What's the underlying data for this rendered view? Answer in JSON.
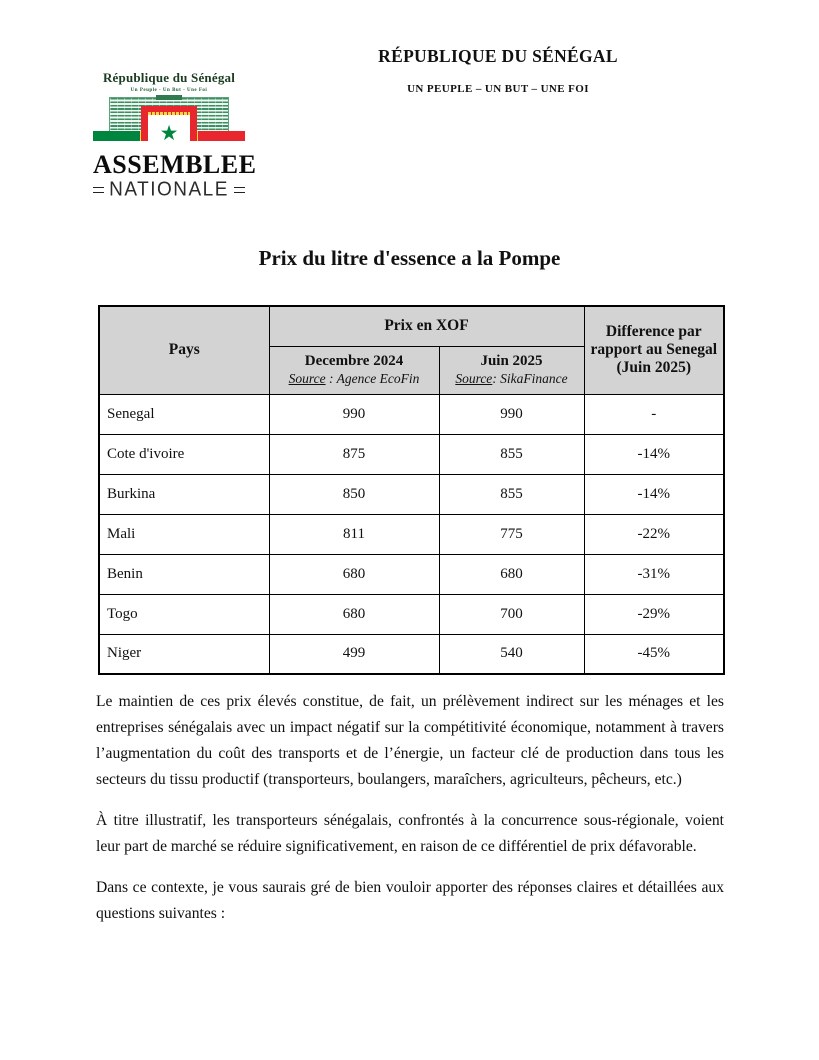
{
  "header": {
    "republic_title": "RÉPUBLIQUE DU SÉNÉGAL",
    "republic_motto": "UN PEUPLE – UN BUT – UNE FOI"
  },
  "logo": {
    "country_name": "République du Sénégal",
    "small_motto": "Un Peuple - Un But - Une Foi",
    "org_line1": "ASSEMBLEE",
    "org_line2": "NATIONALE",
    "star_glyph": "★",
    "colors": {
      "green": "#00853f",
      "yellow": "#f7d73c",
      "red": "#e8262d"
    }
  },
  "document": {
    "title": "Prix du litre d'essence a la Pompe"
  },
  "table": {
    "header": {
      "pays": "Pays",
      "group": "Prix en XOF",
      "dec_title": "Decembre 2024",
      "dec_source_label": "Source",
      "dec_source_rest": " : Agence EcoFin",
      "juin_title": "Juin 2025",
      "juin_source_label": "Source",
      "juin_source_rest": ": SikaFinance",
      "diff": "Difference par rapport au Senegal (Juin 2025)"
    },
    "header_bg": "#d3d3d3",
    "rows": [
      {
        "country": "Senegal",
        "dec": "990",
        "juin": "990",
        "diff": "-"
      },
      {
        "country": "Cote d'ivoire",
        "dec": "875",
        "juin": "855",
        "diff": "-14%"
      },
      {
        "country": "Burkina",
        "dec": "850",
        "juin": "855",
        "diff": "-14%"
      },
      {
        "country": "Mali",
        "dec": "811",
        "juin": "775",
        "diff": "-22%"
      },
      {
        "country": "Benin",
        "dec": "680",
        "juin": "680",
        "diff": "-31%"
      },
      {
        "country": "Togo",
        "dec": "680",
        "juin": "700",
        "diff": "-29%"
      },
      {
        "country": "Niger",
        "dec": "499",
        "juin": "540",
        "diff": "-45%"
      }
    ]
  },
  "paragraphs": [
    "Le maintien de ces prix élevés constitue, de fait, un prélèvement indirect sur les ménages et les entreprises sénégalais avec un impact négatif sur la compétitivité économique, notamment à travers l’augmentation du coût des transports et de l’énergie, un facteur clé de production dans tous les secteurs du tissu productif (transporteurs, boulangers, maraîchers, agriculteurs, pêcheurs, etc.)",
    "À titre illustratif, les transporteurs sénégalais, confrontés à la concurrence sous-régionale, voient leur part de marché se réduire significativement, en raison de ce différentiel de prix défavorable.",
    "Dans ce contexte, je vous saurais gré de bien vouloir apporter des réponses claires et détaillées aux questions suivantes :"
  ]
}
